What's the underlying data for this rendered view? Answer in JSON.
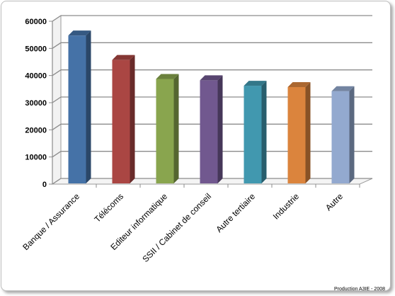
{
  "chart_data": {
    "type": "bar",
    "style": "3d-column",
    "categories": [
      "Banque / Assurance",
      "Télécoms",
      "Editeur informatique",
      "SSII / Cabinet de conseil",
      "Autre tertiaire",
      "Industrie",
      "Autre"
    ],
    "values": [
      55000,
      46000,
      39000,
      38500,
      36500,
      36000,
      34500
    ],
    "colors": [
      "#4572A7",
      "#AA4643",
      "#89A54E",
      "#71588F",
      "#4198AF",
      "#DB843D",
      "#93A9CF"
    ],
    "y_ticks": [
      "0",
      "10000",
      "20000",
      "30000",
      "40000",
      "50000",
      "60000"
    ],
    "ylim": [
      0,
      60000
    ],
    "grid": true,
    "legend": "none"
  },
  "credit": "Production A3IE - 2008"
}
